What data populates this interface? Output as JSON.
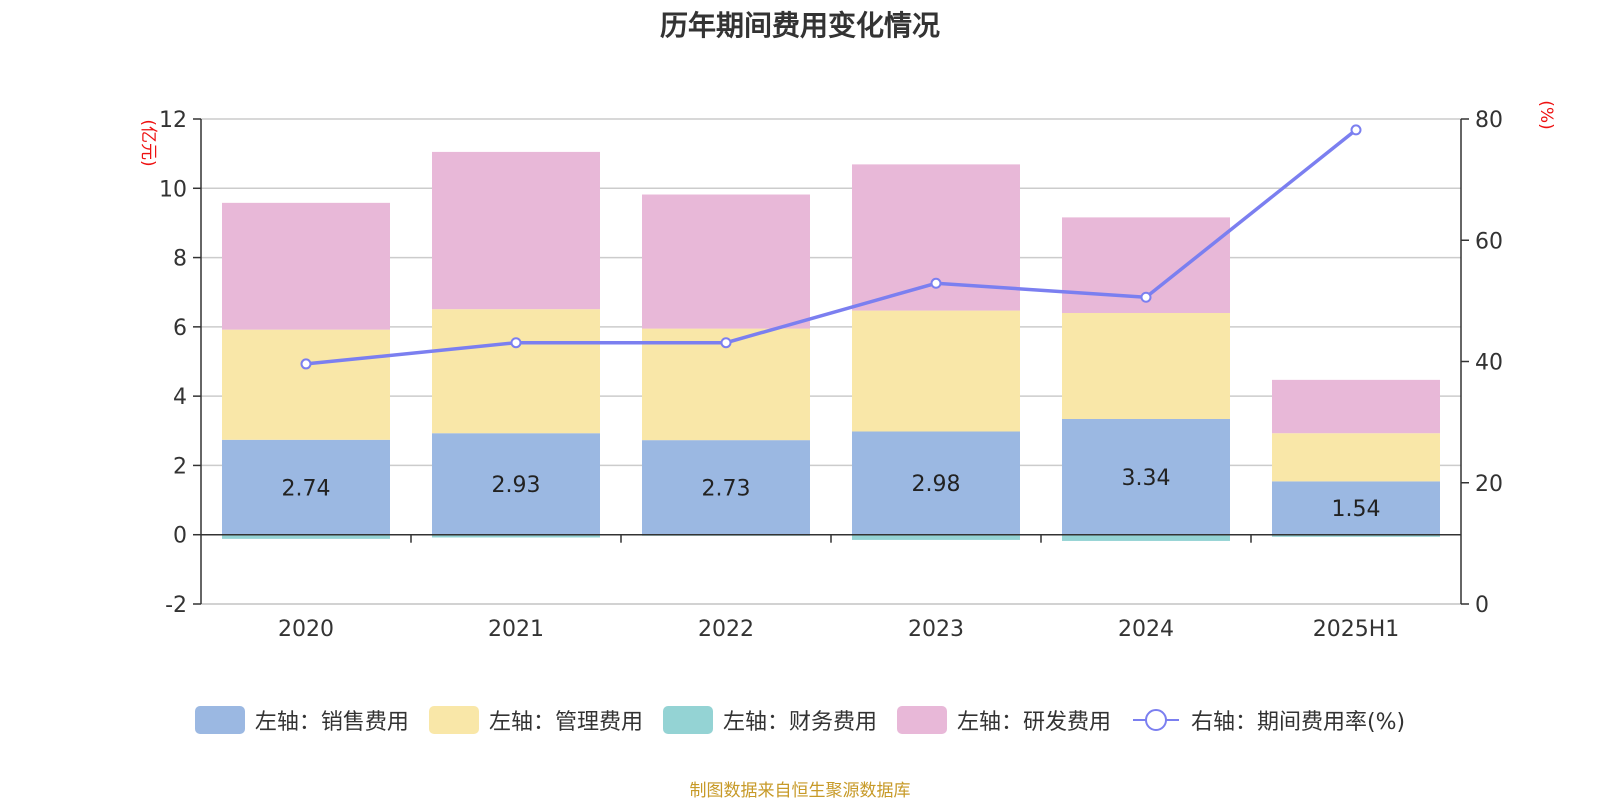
{
  "title": "历年期间费用变化情况",
  "source": "制图数据来自恒生聚源数据库",
  "chart_data": {
    "type": "bar",
    "stacked": true,
    "title": "历年期间费用变化情况",
    "categories": [
      "2020",
      "2021",
      "2022",
      "2023",
      "2024",
      "2025H1"
    ],
    "left_axis": {
      "unit": "(亿元)",
      "ylim": [
        -2,
        12
      ],
      "ticks": [
        -2,
        0,
        2,
        4,
        6,
        8,
        10,
        12
      ]
    },
    "right_axis": {
      "unit": "(%)",
      "ylim": [
        0,
        80
      ],
      "ticks": [
        0,
        20,
        40,
        60,
        80
      ]
    },
    "grid": true,
    "legend_position": "bottom",
    "series": [
      {
        "name": "左轴：销售费用",
        "type": "bar",
        "axis": "left",
        "color": "#9bb8e2",
        "values": [
          2.74,
          2.93,
          2.73,
          2.98,
          3.34,
          1.54
        ],
        "labels": [
          "2.74",
          "2.93",
          "2.73",
          "2.98",
          "3.34",
          "1.54"
        ]
      },
      {
        "name": "左轴：管理费用",
        "type": "bar",
        "axis": "left",
        "color": "#f9e7a8",
        "values": [
          3.18,
          3.58,
          3.22,
          3.49,
          3.06,
          1.39
        ]
      },
      {
        "name": "左轴：财务费用",
        "type": "bar",
        "axis": "left",
        "color": "#94d3d4",
        "values": [
          -0.12,
          -0.08,
          -0.03,
          -0.15,
          -0.18,
          -0.06
        ]
      },
      {
        "name": "左轴：研发费用",
        "type": "bar",
        "axis": "left",
        "color": "#e8b8d8",
        "values": [
          3.66,
          4.54,
          3.87,
          4.22,
          2.76,
          1.54
        ]
      },
      {
        "name": "右轴：期间费用率(%)",
        "type": "line",
        "axis": "right",
        "color": "#7b7ff0",
        "values": [
          39.6,
          43.1,
          43.1,
          52.9,
          50.6,
          78.2
        ]
      }
    ]
  }
}
